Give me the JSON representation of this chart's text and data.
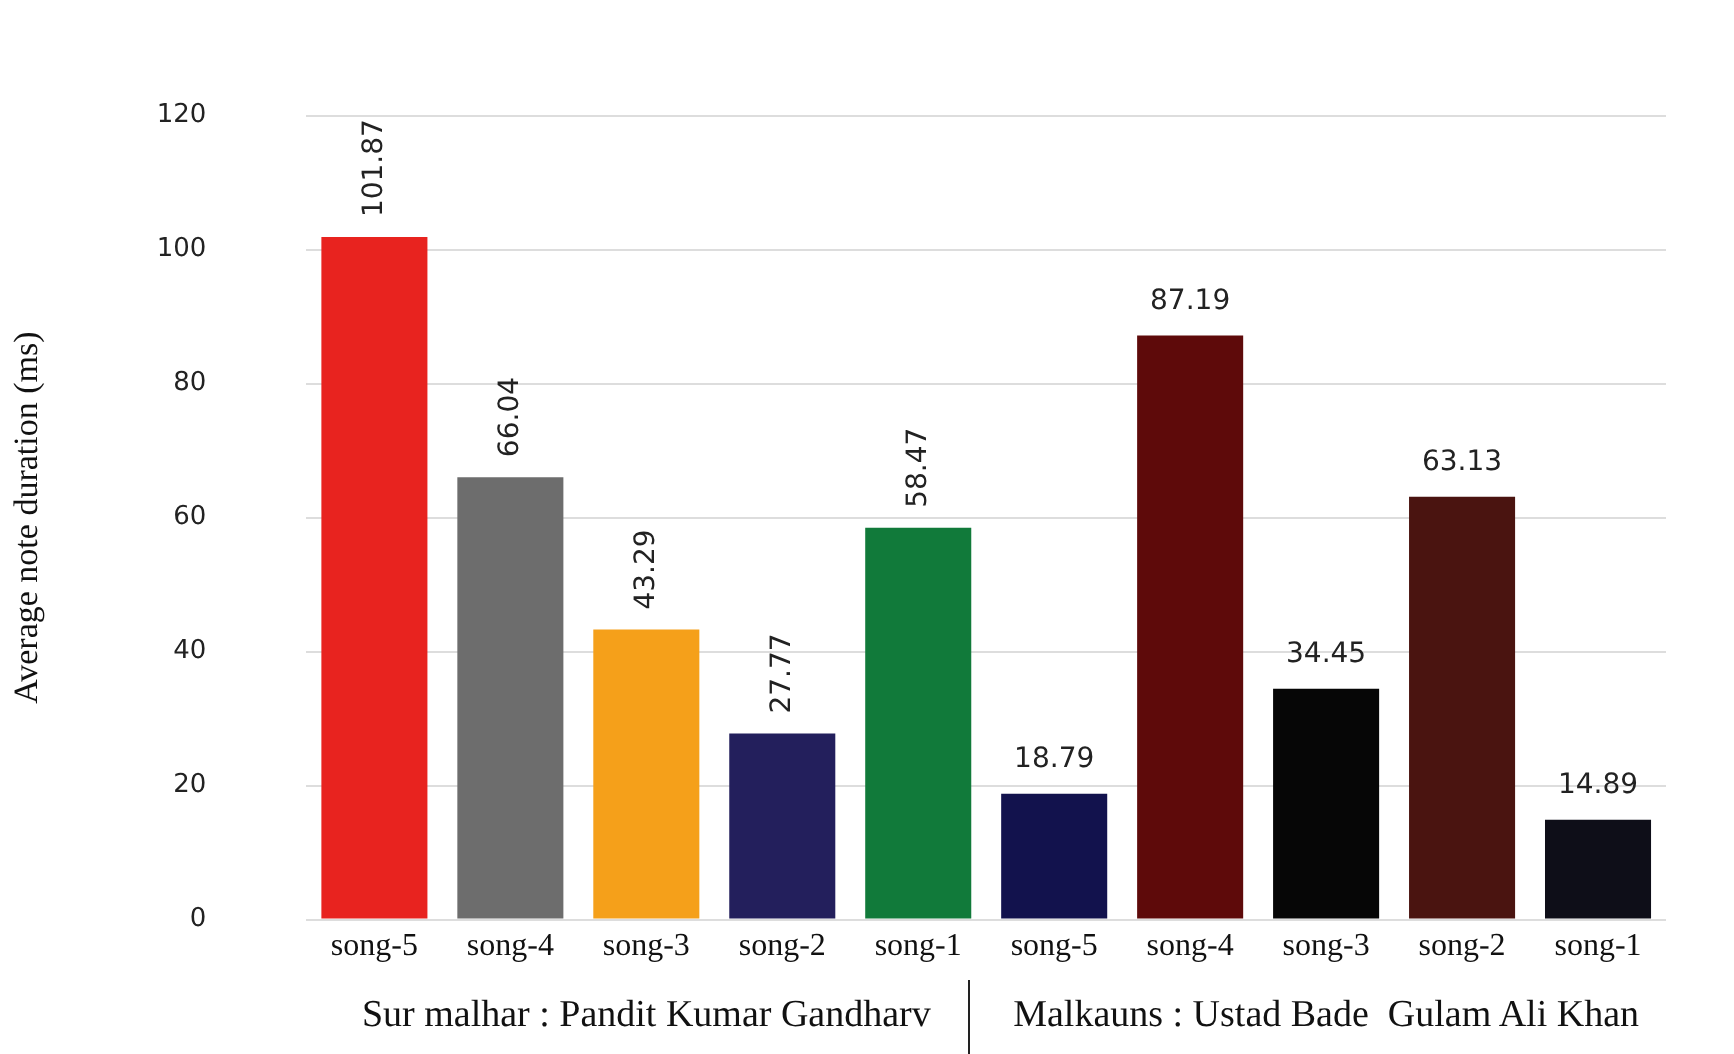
{
  "chart_data": {
    "type": "bar",
    "ylabel": "Average note duration (ms)",
    "categories": [
      "song-5",
      "song-4",
      "song-3",
      "song-2",
      "song-1",
      "song-5",
      "song-4",
      "song-3",
      "song-2",
      "song-1"
    ],
    "values": [
      101.87,
      66.04,
      43.29,
      27.77,
      58.47,
      18.79,
      87.19,
      34.45,
      63.13,
      14.89
    ],
    "colors": [
      "#e8231f",
      "#6d6d6d",
      "#f5a01a",
      "#231f5c",
      "#117a3a",
      "#12124d",
      "#5e0a0a",
      "#060606",
      "#4a1410",
      "#0e0e18"
    ],
    "ylim": [
      0,
      120
    ],
    "yticks": [
      0,
      20,
      40,
      60,
      80,
      100,
      120
    ],
    "grid": "y",
    "legend": false,
    "data_labels": true,
    "annotations": [
      "Sur malhar : Pandit Kumar Gandharv",
      "Malkauns : Ustad Bade  Gulam Ali Khan"
    ]
  }
}
